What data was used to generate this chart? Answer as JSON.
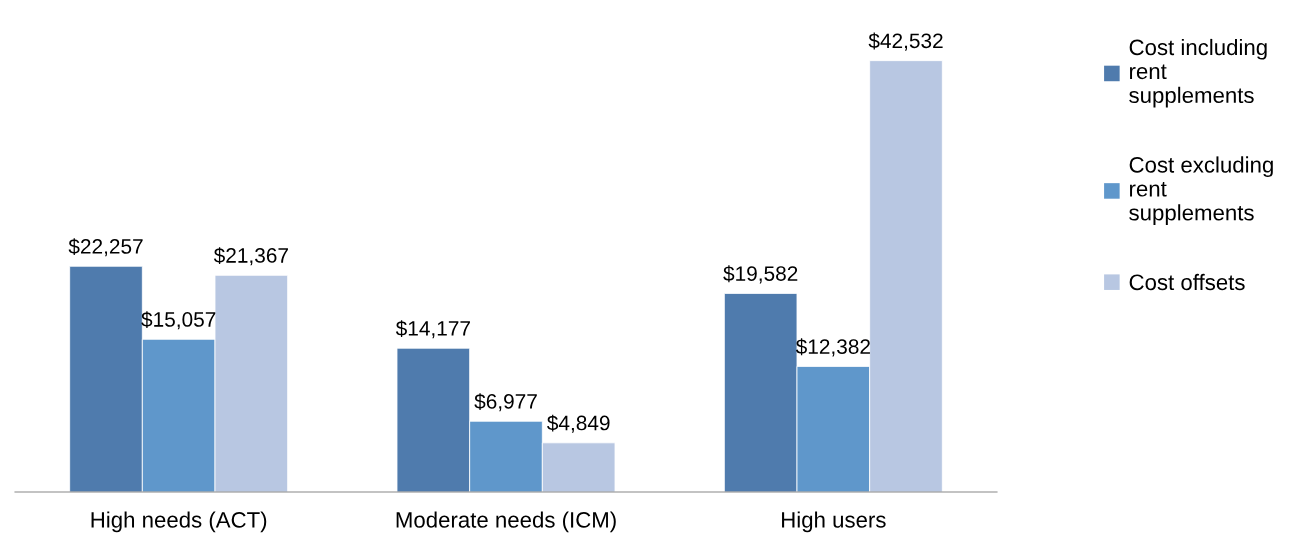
{
  "chart_data": {
    "type": "bar",
    "categories": [
      "High needs (ACT)",
      "Moderate needs (ICM)",
      "High users"
    ],
    "series": [
      {
        "name": "Cost including\nrent\nsupplements",
        "color": "#4f7bad",
        "values": [
          22257,
          14177,
          19582
        ],
        "value_labels": [
          "$22,257",
          "$14,177",
          "$19,582"
        ]
      },
      {
        "name": "Cost excluding\nrent\nsupplements",
        "color": "#5f97cb",
        "values": [
          15057,
          6977,
          12382
        ],
        "value_labels": [
          "$15,057",
          "$6,977",
          "$12,382"
        ]
      },
      {
        "name": "Cost offsets",
        "color": "#b8c7e2",
        "values": [
          21367,
          4849,
          42532
        ],
        "value_labels": [
          "$21,367",
          "$4,849",
          "$42,532"
        ]
      }
    ],
    "legend": "right",
    "grid": false
  }
}
